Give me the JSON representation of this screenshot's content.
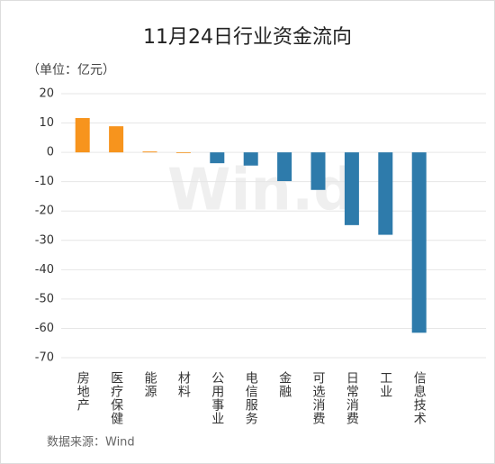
{
  "chart_data": {
    "type": "bar",
    "title": "11月24日行业资金流向",
    "unit_label": "（单位：亿元）",
    "source": "数据来源：Wind",
    "watermark": "Win.d",
    "categories": [
      "房地产",
      "医疗保健",
      "能源",
      "材料",
      "公用事业",
      "电信服务",
      "金融",
      "可选消费",
      "日常消费",
      "工业",
      "信息技术"
    ],
    "values": [
      11.7,
      8.9,
      0.3,
      -0.2,
      -3.7,
      -4.5,
      -9.8,
      -12.8,
      -24.8,
      -28.1,
      -61.5
    ],
    "colors": [
      "#f7941d",
      "#f7941d",
      "#f7941d",
      "#f7941d",
      "#2e7bab",
      "#2e7bab",
      "#2e7bab",
      "#2e7bab",
      "#2e7bab",
      "#2e7bab",
      "#2e7bab"
    ],
    "ylim": [
      -70,
      20
    ],
    "yticks": [
      -70,
      -60,
      -50,
      -40,
      -30,
      -20,
      -10,
      0,
      10,
      20
    ],
    "grid": true
  }
}
